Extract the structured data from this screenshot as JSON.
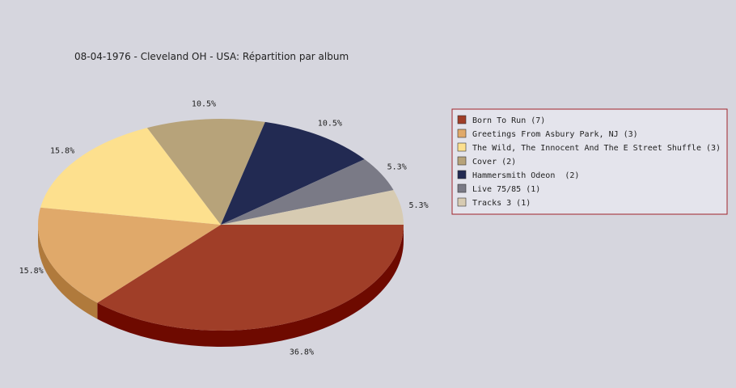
{
  "chart_data": {
    "type": "pie",
    "title": "08-04-1976 - Cleveland OH - USA:  Répartition par album",
    "slices": [
      {
        "label": "Born To Run (7)",
        "value": 36.8,
        "percent_label": "36.8%",
        "color": "#a03e28",
        "side_color": "#6e0a00"
      },
      {
        "label": "Greetings From Asbury Park, NJ (3)",
        "value": 15.8,
        "percent_label": "15.8%",
        "color": "#e0a96a",
        "side_color": "#b07a3c"
      },
      {
        "label": "The Wild, The Innocent And The E Street Shuffle (3)",
        "value": 15.8,
        "percent_label": "15.8%",
        "color": "#fde08e",
        "side_color": "#c9a84f"
      },
      {
        "label": "Cover (2)",
        "value": 10.5,
        "percent_label": "10.5%",
        "color": "#b7a37a",
        "side_color": "#877350"
      },
      {
        "label": "Hammersmith Odeon  (2)",
        "value": 10.5,
        "percent_label": "10.5%",
        "color": "#222a52",
        "side_color": "#101530"
      },
      {
        "label": "Live 75/85 (1)",
        "value": 5.3,
        "percent_label": "5.3%",
        "color": "#7a7a86",
        "side_color": "#50505a"
      },
      {
        "label": "Tracks 3 (1)",
        "value": 5.3,
        "percent_label": "5.3%",
        "color": "#d7cbb2",
        "side_color": "#a89c84"
      }
    ],
    "legend_position": "right",
    "style": "3d-pie"
  },
  "colors": {
    "background": "#d6d6de",
    "legend_background": "#e4e4ec",
    "legend_border": "#a0232a"
  }
}
